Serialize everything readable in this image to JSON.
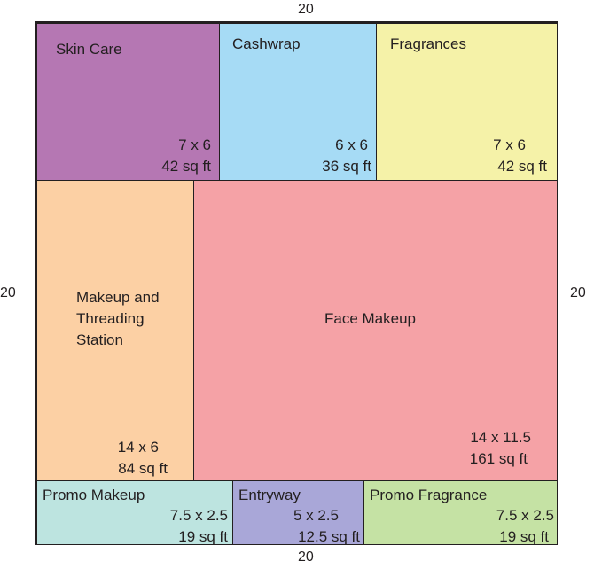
{
  "dimensions": {
    "top": "20",
    "bottom": "20",
    "left": "20",
    "right": "20"
  },
  "rooms": {
    "skin_care": {
      "name": "Skin Care",
      "size": "7 x 6",
      "area": "42 sq ft",
      "color": "#b577b3"
    },
    "cashwrap": {
      "name": "Cashwrap",
      "size": "6 x 6",
      "area": "36 sq ft",
      "color": "#a6dbf5"
    },
    "fragrances": {
      "name": "Fragrances",
      "size": "7 x 6",
      "area": "42 sq ft",
      "color": "#f5f2a8"
    },
    "makeup_threading": {
      "name_lines": [
        "Makeup and",
        "Threading",
        "Station"
      ],
      "size": "14 x 6",
      "area": "84 sq ft",
      "color": "#fcd0a4"
    },
    "face_makeup": {
      "name": "Face Makeup",
      "size": "14 x 11.5",
      "area": "161 sq ft",
      "color": "#f5a2a6"
    },
    "promo_makeup": {
      "name": "Promo Makeup",
      "size": "7.5 x 2.5",
      "area": "19 sq ft",
      "color": "#bde4e0"
    },
    "entryway": {
      "name": "Entryway",
      "size": "5 x 2.5",
      "area": "12.5 sq ft",
      "color": "#a9a7d8"
    },
    "promo_fragrance": {
      "name": "Promo Fragrance",
      "size": "7.5 x 2.5",
      "area": "19 sq ft",
      "color": "#c5e2a4"
    }
  }
}
